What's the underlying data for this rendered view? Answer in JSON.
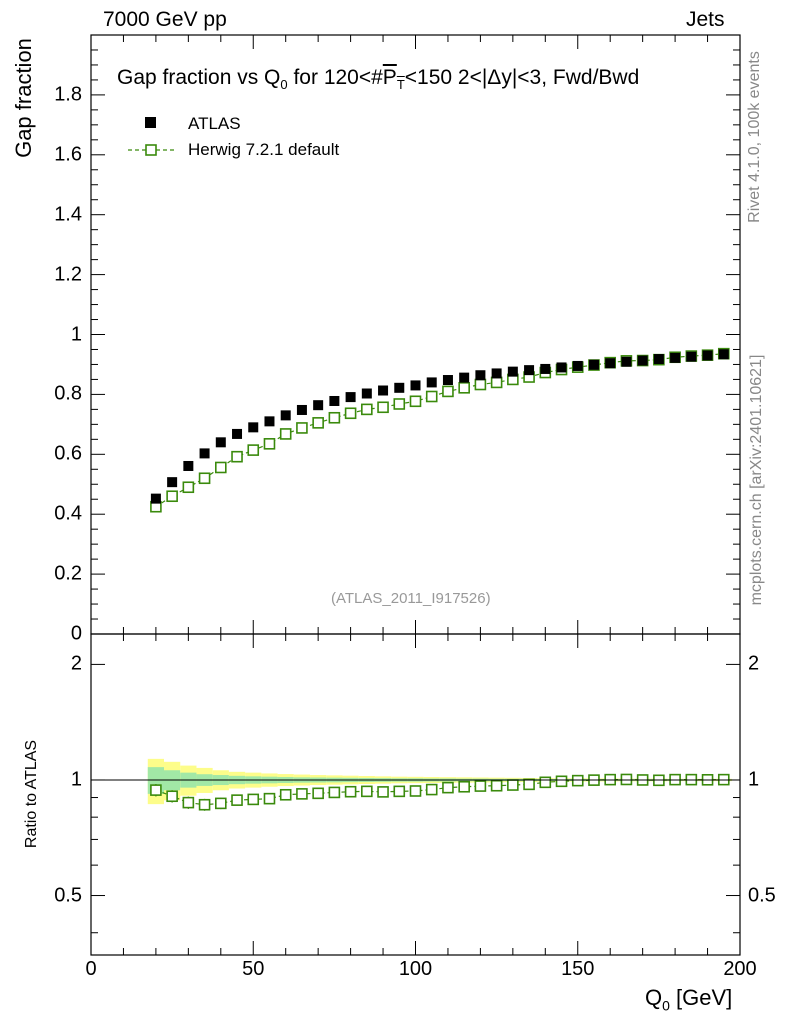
{
  "header": {
    "left": "7000 GeV pp",
    "right": "Jets"
  },
  "side_labels": {
    "rivet": "Rivet 4.1.0,  100k events",
    "mcplots": "mcplots.cern.ch [arXiv:2401.10621]"
  },
  "colors": {
    "data": "#000000",
    "mc": "#3a8a0c",
    "band_yellow": "#fdfd8a",
    "band_green": "#a2e8a6"
  },
  "chart_data": {
    "type": "scatter",
    "title": "Gap fraction vs Q0 for 120<#PT<150  2<|Δy|<3, Fwd/Bwd",
    "title_parts": {
      "a": "Gap fraction vs Q",
      "a_sub": "0",
      "b": " for 120<#",
      "p": "P",
      "p_sub": "T",
      "c": "<150  2<|Δy|<3, Fwd/Bwd"
    },
    "analysis_id": "(ATLAS_2011_I917526)",
    "xlabel": "Q0 [GeV]",
    "xlabel_parts": {
      "main": "Q",
      "sub": "0",
      "unit": " [GeV]"
    },
    "ylabel": "Gap fraction",
    "ratio_ylabel": "Ratio to ATLAS",
    "xlim": [
      0,
      200
    ],
    "ylim": [
      0,
      2.0
    ],
    "ratio_ylim": [
      0.35,
      2.4
    ],
    "xticks": [
      "0",
      "50",
      "100",
      "150",
      "200"
    ],
    "yticks": [
      "0",
      "0.2",
      "0.4",
      "0.6",
      "0.8",
      "1",
      "1.2",
      "1.4",
      "1.6",
      "1.8"
    ],
    "ratio_yticks": [
      "0.5",
      "1",
      "2"
    ],
    "legend": {
      "position": "top-left",
      "entries": [
        "ATLAS",
        "Herwig 7.2.1 default"
      ]
    },
    "x": [
      20,
      25,
      30,
      35,
      40,
      45,
      50,
      55,
      60,
      65,
      70,
      75,
      80,
      85,
      90,
      95,
      100,
      105,
      110,
      115,
      120,
      125,
      130,
      135,
      140,
      145,
      150,
      155,
      160,
      165,
      170,
      175,
      180,
      185,
      190,
      195
    ],
    "series": [
      {
        "name": "ATLAS",
        "marker": "filled-square",
        "values": [
          0.452,
          0.507,
          0.561,
          0.603,
          0.64,
          0.668,
          0.69,
          0.71,
          0.73,
          0.748,
          0.764,
          0.778,
          0.791,
          0.803,
          0.813,
          0.822,
          0.83,
          0.84,
          0.848,
          0.856,
          0.864,
          0.87,
          0.876,
          0.881,
          0.885,
          0.89,
          0.895,
          0.899,
          0.904,
          0.909,
          0.913,
          0.918,
          0.922,
          0.926,
          0.93,
          0.934
        ]
      },
      {
        "name": "Herwig 7.2.1 default",
        "marker": "open-square",
        "error": 0.014,
        "values": [
          0.425,
          0.46,
          0.49,
          0.52,
          0.556,
          0.592,
          0.614,
          0.635,
          0.668,
          0.688,
          0.705,
          0.722,
          0.737,
          0.75,
          0.757,
          0.768,
          0.777,
          0.793,
          0.81,
          0.822,
          0.833,
          0.84,
          0.85,
          0.858,
          0.873,
          0.883,
          0.891,
          0.898,
          0.906,
          0.912,
          0.913,
          0.916,
          0.924,
          0.928,
          0.931,
          0.936
        ]
      }
    ],
    "ratio": {
      "values": [
        0.941,
        0.907,
        0.873,
        0.862,
        0.869,
        0.886,
        0.89,
        0.894,
        0.915,
        0.92,
        0.923,
        0.928,
        0.932,
        0.934,
        0.931,
        0.934,
        0.936,
        0.944,
        0.955,
        0.96,
        0.964,
        0.966,
        0.97,
        0.974,
        0.986,
        0.992,
        0.996,
        0.999,
        1.002,
        1.003,
        1.0,
        0.998,
        1.002,
        1.002,
        1.001,
        1.002
      ],
      "band_yellow": [
        0.135,
        0.115,
        0.09,
        0.075,
        0.06,
        0.05,
        0.045,
        0.04,
        0.036,
        0.033,
        0.03,
        0.028,
        0.026,
        0.024,
        0.022,
        0.02,
        0.019,
        0.018,
        0.017,
        0.016,
        0.015,
        0.014,
        0.013,
        0.012,
        0.011,
        0.01,
        0.01,
        0.009,
        0.009,
        0.008,
        0.008,
        0.008,
        0.007,
        0.007,
        0.007,
        0.007
      ],
      "band_green": [
        0.08,
        0.06,
        0.045,
        0.035,
        0.03,
        0.025,
        0.022,
        0.02,
        0.018,
        0.016,
        0.015,
        0.014,
        0.013,
        0.012,
        0.011,
        0.01,
        0.01,
        0.009,
        0.009,
        0.008,
        0.008,
        0.007,
        0.007,
        0.007,
        0.006,
        0.006,
        0.006,
        0.005,
        0.005,
        0.005,
        0.005,
        0.005,
        0.005,
        0.004,
        0.004,
        0.004
      ]
    }
  }
}
